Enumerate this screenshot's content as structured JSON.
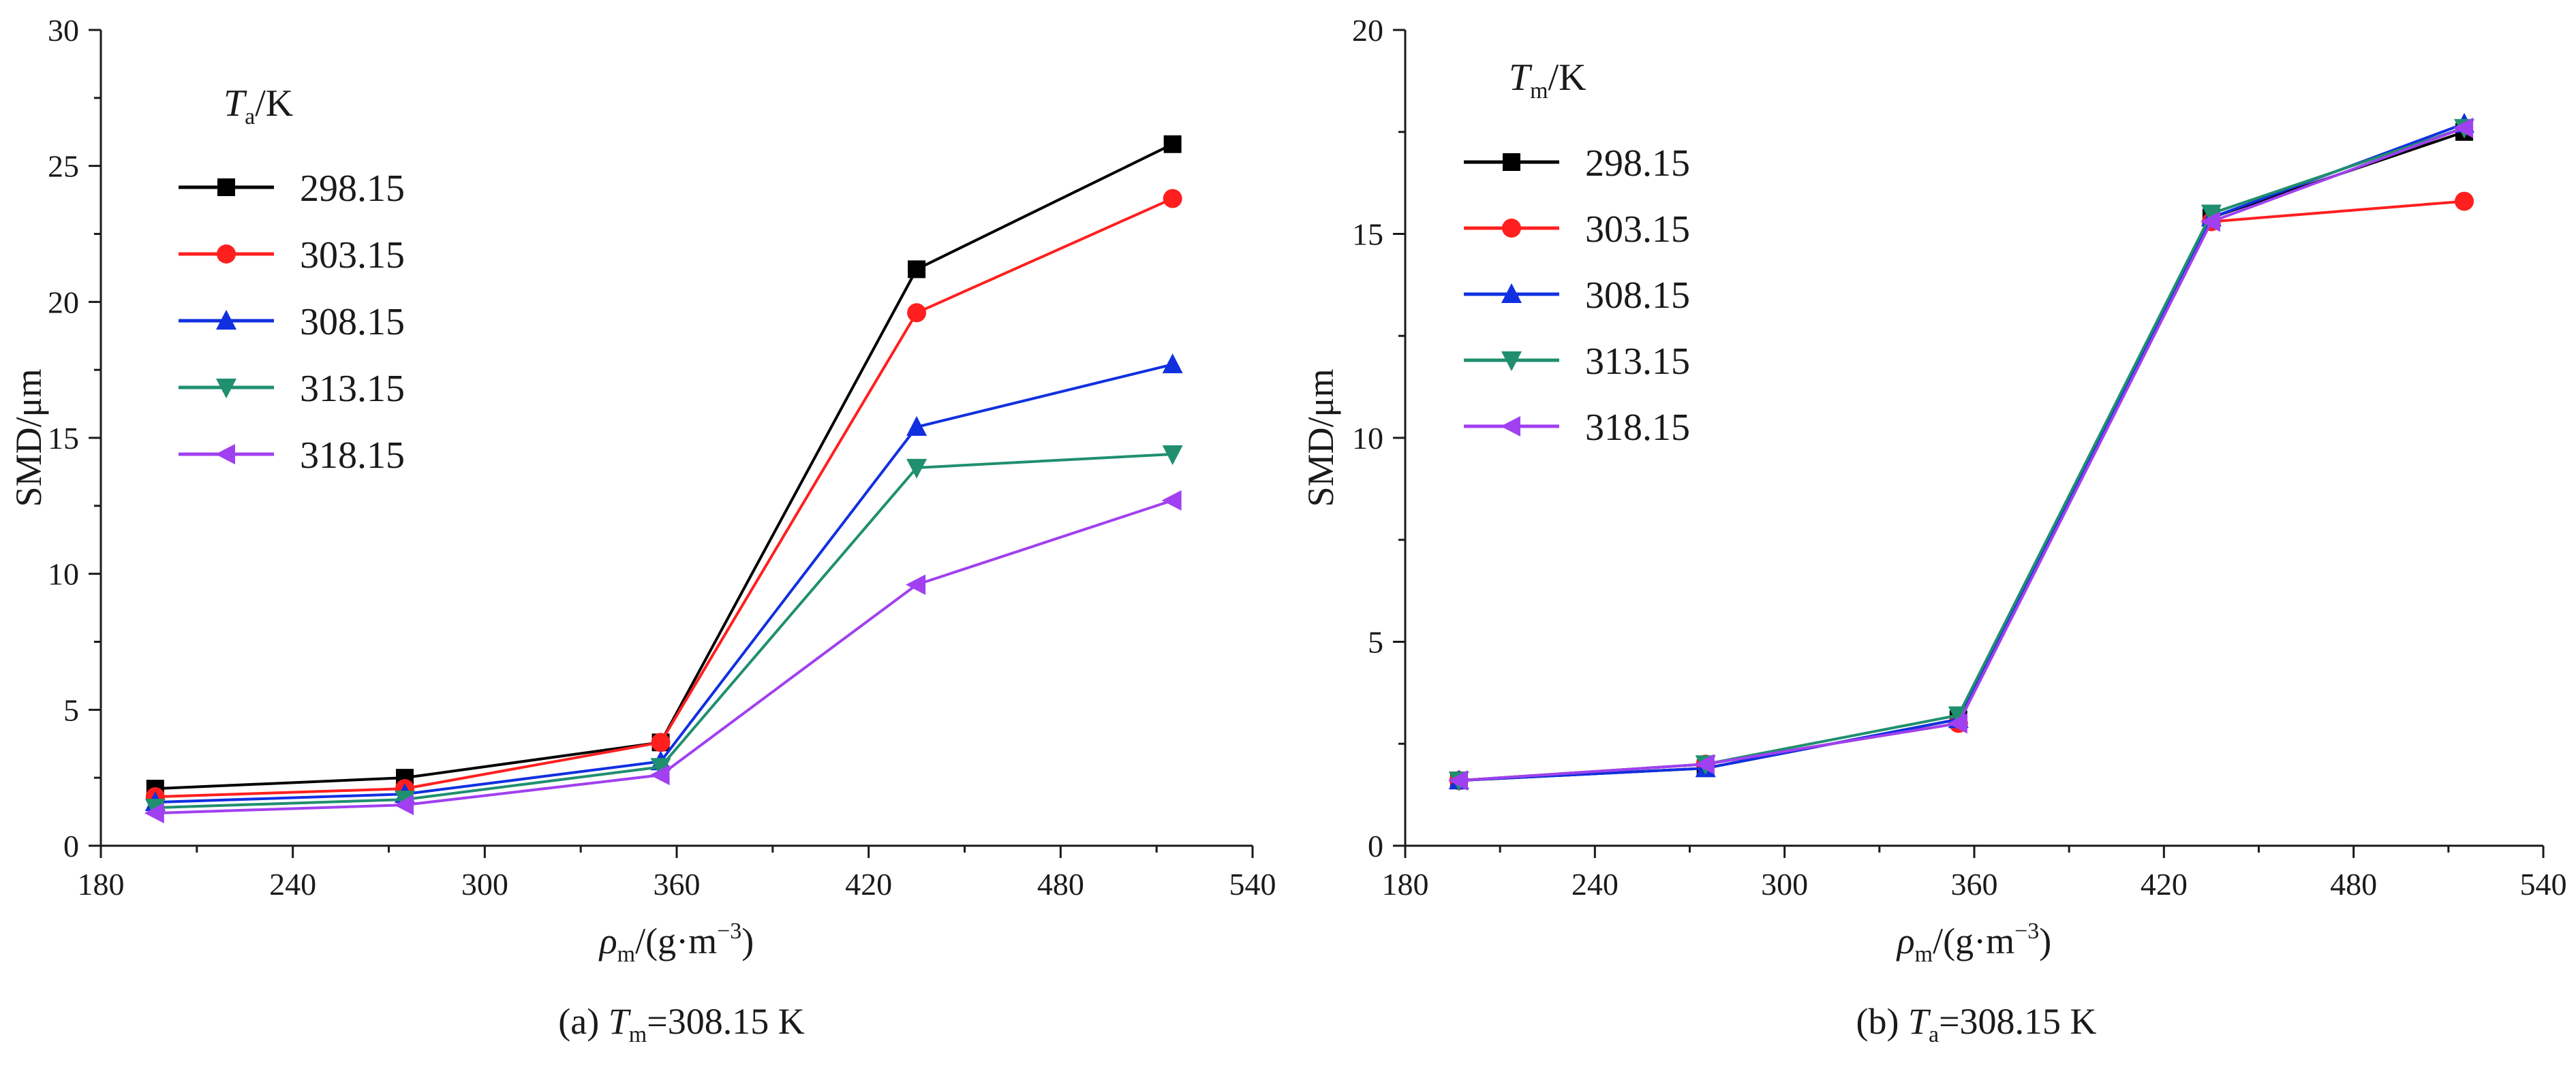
{
  "chart_data": [
    {
      "type": "line",
      "panel": "a",
      "caption": {
        "prefix": "(a) ",
        "var": "T",
        "sub": "m",
        "suffix": "=308.15 K"
      },
      "xlabel": {
        "var": "ρ",
        "sub": "m",
        "pre": "/(g·m",
        "sup": "−3",
        "post": ")"
      },
      "ylabel": "SMD/μm",
      "legend_title": {
        "var": "T",
        "sub": "a",
        "suffix": "/K"
      },
      "legend_position": "top-left",
      "xlim": [
        180,
        540
      ],
      "ylim": [
        0,
        30
      ],
      "xticks": [
        180,
        240,
        300,
        360,
        420,
        480,
        540
      ],
      "yticks": [
        0,
        5,
        10,
        15,
        20,
        25,
        30
      ],
      "x": [
        197,
        275,
        355,
        435,
        515
      ],
      "series": [
        {
          "name": "298.15",
          "color": "#000000",
          "marker": "square",
          "values": [
            2.1,
            2.5,
            3.8,
            21.2,
            25.8
          ]
        },
        {
          "name": "303.15",
          "color": "#ff1f1f",
          "marker": "circle",
          "values": [
            1.8,
            2.1,
            3.8,
            19.6,
            23.8
          ]
        },
        {
          "name": "308.15",
          "color": "#1030e0",
          "marker": "triangle-up",
          "values": [
            1.6,
            1.9,
            3.1,
            15.4,
            17.7
          ]
        },
        {
          "name": "313.15",
          "color": "#1f8f6f",
          "marker": "triangle-down",
          "values": [
            1.4,
            1.7,
            2.9,
            13.9,
            14.4
          ]
        },
        {
          "name": "318.15",
          "color": "#a040f0",
          "marker": "triangle-left",
          "values": [
            1.2,
            1.5,
            2.6,
            9.6,
            12.7
          ]
        }
      ]
    },
    {
      "type": "line",
      "panel": "b",
      "caption": {
        "prefix": "(b) ",
        "var": "T",
        "sub": "a",
        "suffix": "=308.15 K"
      },
      "xlabel": {
        "var": "ρ",
        "sub": "m",
        "pre": "/(g·m",
        "sup": "−3",
        "post": ")"
      },
      "ylabel": "SMD/μm",
      "legend_title": {
        "var": "T",
        "sub": "m",
        "suffix": "/K"
      },
      "legend_position": "top-left",
      "xlim": [
        180,
        540
      ],
      "ylim": [
        0,
        20
      ],
      "xticks": [
        180,
        240,
        300,
        360,
        420,
        480,
        540
      ],
      "yticks": [
        0,
        5,
        10,
        15,
        20
      ],
      "x": [
        197,
        275,
        355,
        435,
        515
      ],
      "series": [
        {
          "name": "298.15",
          "color": "#000000",
          "marker": "square",
          "values": [
            1.6,
            1.9,
            3.1,
            15.4,
            17.5
          ]
        },
        {
          "name": "303.15",
          "color": "#ff1f1f",
          "marker": "circle",
          "values": [
            1.6,
            2.0,
            3.0,
            15.3,
            15.8
          ]
        },
        {
          "name": "308.15",
          "color": "#1030e0",
          "marker": "triangle-up",
          "values": [
            1.6,
            1.9,
            3.1,
            15.4,
            17.7
          ]
        },
        {
          "name": "313.15",
          "color": "#1f8f6f",
          "marker": "triangle-down",
          "values": [
            1.6,
            2.0,
            3.2,
            15.5,
            17.6
          ]
        },
        {
          "name": "318.15",
          "color": "#a040f0",
          "marker": "triangle-left",
          "values": [
            1.6,
            2.0,
            3.0,
            15.3,
            17.6
          ]
        }
      ]
    }
  ]
}
